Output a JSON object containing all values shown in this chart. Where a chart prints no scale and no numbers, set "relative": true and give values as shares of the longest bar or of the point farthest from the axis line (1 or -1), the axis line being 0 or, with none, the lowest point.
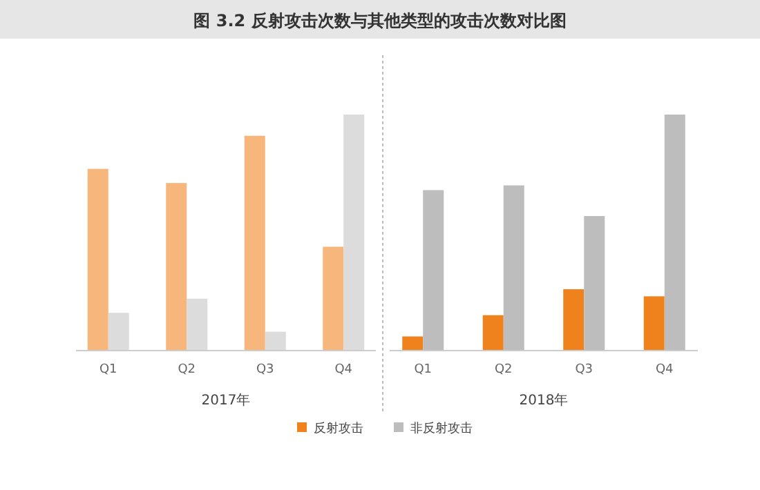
{
  "chart_data": [
    {
      "type": "bar",
      "title": "图 3.2 反射攻击次数与其他类型的攻击次数对比图",
      "relative": true,
      "categories": [
        "Q1",
        "Q2",
        "Q3",
        "Q4"
      ],
      "xlabel": "2017年",
      "series": [
        {
          "color": "#f7b77c",
          "values": [
            0.77,
            0.71,
            0.91,
            0.44
          ]
        },
        {
          "color": "#dcdcdc",
          "values": [
            0.16,
            0.22,
            0.08,
            1
          ]
        }
      ]
    },
    {
      "type": "bar",
      "relative": true,
      "categories": [
        "Q1",
        "Q2",
        "Q3",
        "Q4"
      ],
      "xlabel": "2018年",
      "legend": "bottom",
      "series": [
        {
          "name": "反射攻击",
          "color": "#f0821e",
          "values": [
            0.06,
            0.15,
            0.26,
            0.23
          ]
        },
        {
          "name": "非反射攻击",
          "color": "#bdbdbd",
          "values": [
            0.68,
            0.7,
            0.57,
            1
          ]
        }
      ]
    }
  ]
}
